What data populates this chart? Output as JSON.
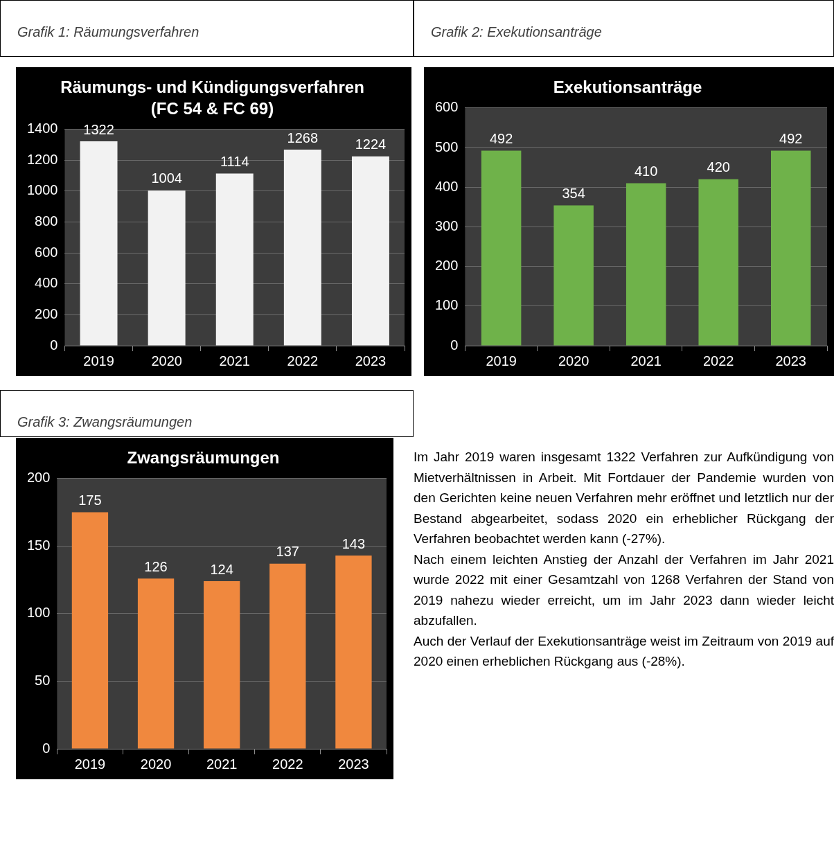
{
  "chart_data": [
    {
      "type": "bar",
      "title": "Räumungs- und Kündigungsverfahren",
      "subtitle": "(FC 54 & FC 69)",
      "annotations": [
        "Grafik 1: Räumungsverfahren"
      ],
      "categories": [
        "2019",
        "2020",
        "2021",
        "2022",
        "2023"
      ],
      "values": [
        1322,
        1004,
        1114,
        1268,
        1224
      ],
      "color": "#f2f2f2",
      "ylim": [
        0,
        1400
      ],
      "yticks": [
        0,
        200,
        400,
        600,
        800,
        1000,
        1200,
        1400
      ],
      "grid": "y",
      "data_labels": true
    },
    {
      "type": "bar",
      "title": "Exekutionsanträge",
      "annotations": [
        "Grafik 2: Exekutionsanträge"
      ],
      "categories": [
        "2019",
        "2020",
        "2021",
        "2022",
        "2023"
      ],
      "values": [
        492,
        354,
        410,
        420,
        492
      ],
      "color": "#6fb24a",
      "ylim": [
        0,
        600
      ],
      "yticks": [
        0,
        100,
        200,
        300,
        400,
        500,
        600
      ],
      "grid": "y",
      "data_labels": true
    },
    {
      "type": "bar",
      "title": "Zwangsräumungen",
      "annotations": [
        "Grafik 3: Zwangsräumungen"
      ],
      "categories": [
        "2019",
        "2020",
        "2021",
        "2022",
        "2023"
      ],
      "values": [
        175,
        126,
        124,
        137,
        143
      ],
      "color": "#f0883e",
      "ylim": [
        0,
        200
      ],
      "yticks": [
        0,
        50,
        100,
        150,
        200
      ],
      "grid": "y",
      "data_labels": true
    },
    {
      "type": "other",
      "annotations": [
        "Im Jahr 2019 waren insgesamt 1322 Verfahren zur Aufkündigung von Mietverhältnissen in Arbeit. Mit Fortdauer der Pandemie wurden von den Gerichten keine neuen Verfahren mehr eröffnet und letztlich nur der Bestand abgearbeitet, sodass 2020 ein erheblicher Rückgang der Verfahren beobachtet werden kann (-27%).",
        "Nach einem leichten Anstieg der Anzahl der Verfahren im Jahr 2021 wurde 2022 mit einer Gesamtzahl von 1268 Verfahren der Stand von 2019 nahezu wieder erreicht, um im Jahr 2023 dann wieder leicht abzufallen.",
        "Auch der Verlauf der Exekutionsanträge weist im Zeitraum von 2019 auf 2020 einen erheblichen Rückgang aus (-28%)."
      ]
    }
  ]
}
